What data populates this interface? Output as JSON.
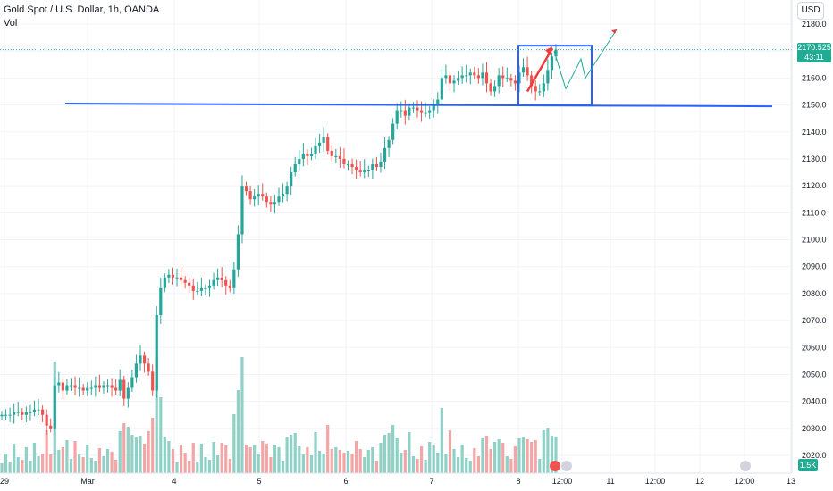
{
  "header": {
    "title": "Gold Spot / U.S. Dollar, 1h, OANDA",
    "vol_label": "Vol"
  },
  "currency_button": "USD",
  "last_price": {
    "value": "2170.525",
    "countdown": "43:11"
  },
  "volume_badge": "1.5K",
  "colors": {
    "up": "#26a69a",
    "down": "#ef5350",
    "vol_up": "#8fd1c6",
    "vol_down": "#f4a5a5",
    "support_line": "#2962ff",
    "box": "#2962ff",
    "arrow": "#ef3b3b",
    "projection": "#26a69a",
    "price_dotted": "#22ab94"
  },
  "chart_data": {
    "type": "candlestick",
    "symbol": "XAUUSD",
    "interval": "1h",
    "y_axis": {
      "min": 2020,
      "max": 2180,
      "ticks": [
        2020,
        2030,
        2040,
        2050,
        2060,
        2070,
        2080,
        2090,
        2100,
        2110,
        2120,
        2130,
        2140,
        2150,
        2160,
        2170,
        2180
      ]
    },
    "x_tick_labels": [
      "29",
      "Mar",
      "4",
      "5",
      "6",
      "7",
      "8",
      "12:00",
      "11",
      "12:00",
      "12",
      "12:00",
      "13"
    ],
    "candle_closes": [
      2035,
      2035,
      2035,
      2036,
      2036,
      2035,
      2036,
      2036,
      2037,
      2037,
      2035,
      2031,
      2030,
      2046,
      2047,
      2044,
      2046,
      2046,
      2045,
      2045,
      2044,
      2045,
      2045,
      2046,
      2045,
      2046,
      2046,
      2045,
      2044,
      2048,
      2041,
      2045,
      2049,
      2054,
      2057,
      2054,
      2051,
      2044,
      2072,
      2082,
      2086,
      2087,
      2086,
      2086,
      2085,
      2084,
      2083,
      2081,
      2081,
      2082,
      2082,
      2083,
      2085,
      2086,
      2085,
      2083,
      2082,
      2089,
      2102,
      2120,
      2118,
      2115,
      2116,
      2117,
      2116,
      2114,
      2113,
      2114,
      2116,
      2117,
      2120,
      2125,
      2128,
      2130,
      2132,
      2131,
      2132,
      2135,
      2136,
      2138,
      2133,
      2131,
      2131,
      2130,
      2128,
      2128,
      2127,
      2126,
      2125,
      2126,
      2126,
      2128,
      2127,
      2129,
      2134,
      2137,
      2143,
      2148,
      2148,
      2146,
      2149,
      2149,
      2148,
      2147,
      2147,
      2148,
      2150,
      2152,
      2160,
      2161,
      2158,
      2159,
      2160,
      2161,
      2161,
      2162,
      2161,
      2160,
      2162,
      2158,
      2155,
      2157,
      2161,
      2160,
      2160,
      2159,
      2158,
      2162,
      2164,
      2161,
      2157,
      2155,
      2155,
      2158,
      2163,
      2168,
      2170.525
    ],
    "annotations": {
      "support_line": {
        "from": 2150.5,
        "to": 2149.5
      },
      "box": {
        "y_low": 2150,
        "y_high": 2172
      },
      "arrow_up": {
        "from": 2155,
        "to": 2171
      },
      "projected_path": [
        2170,
        2156,
        2167,
        2160,
        2178
      ],
      "dotted_price_level": 2170.525
    }
  }
}
